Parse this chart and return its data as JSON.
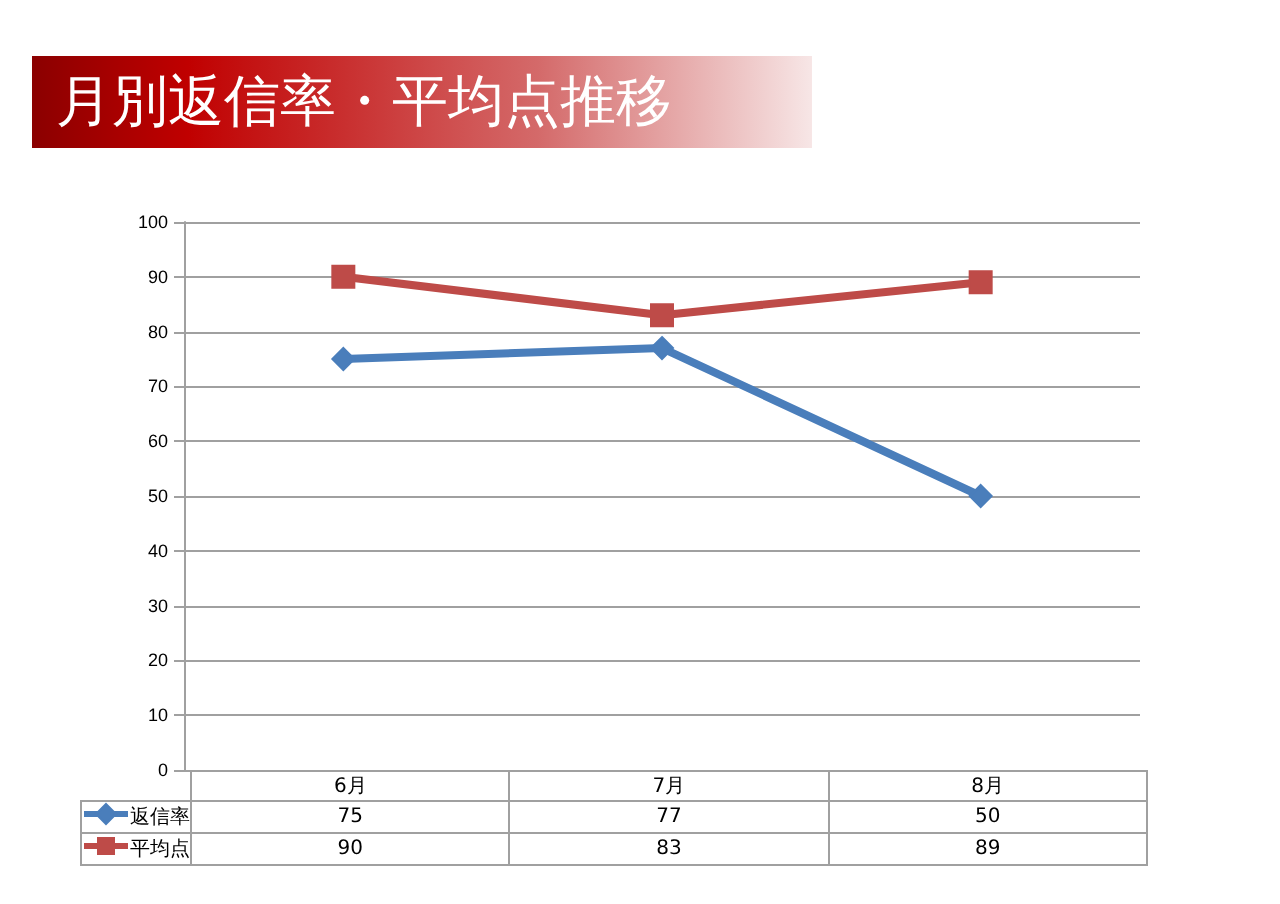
{
  "chart_data": {
    "type": "line",
    "title": "月別返信率・平均点推移",
    "categories": [
      "6月",
      "7月",
      "8月"
    ],
    "series": [
      {
        "name": "返信率",
        "color": "#4a7ebb",
        "marker": "diamond",
        "values": [
          75,
          77,
          50
        ]
      },
      {
        "name": "平均点",
        "color": "#be4b48",
        "marker": "square",
        "values": [
          90,
          83,
          89
        ]
      }
    ],
    "ylim": [
      0,
      100
    ],
    "yticks": [
      0,
      10,
      20,
      30,
      40,
      50,
      60,
      70,
      80,
      90,
      100
    ],
    "grid": "y",
    "legend": "bottom",
    "data_labels": true
  }
}
